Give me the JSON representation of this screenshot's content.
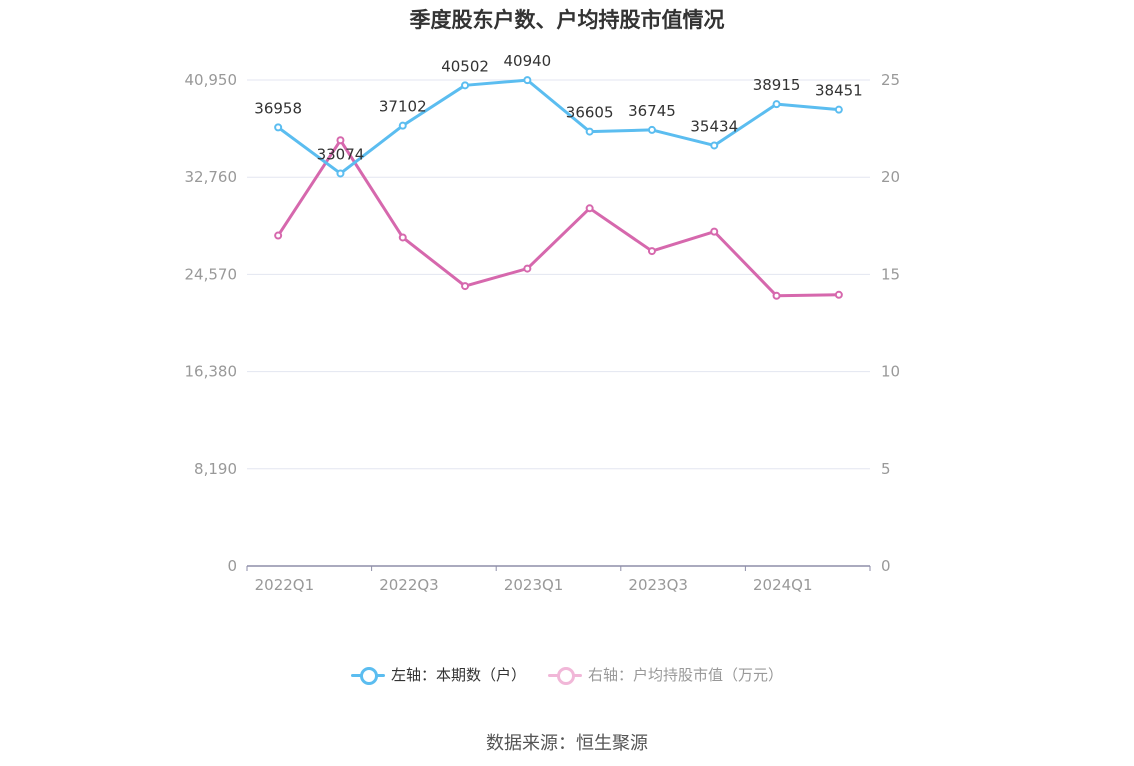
{
  "title": "季度股东户数、户均持股市值情况",
  "source": "数据来源：恒生聚源",
  "legend": {
    "left_label": "左轴：本期数（户）",
    "right_label": "右轴：户均持股市值（万元）"
  },
  "colors": {
    "left": "#5bbdf0",
    "right": "#d668ad",
    "grid": "#e3e6f0",
    "axis": "#8e8ea8"
  },
  "chart_data": {
    "type": "line",
    "categories": [
      "2022Q1",
      "2022Q2",
      "2022Q3",
      "2022Q4",
      "2023Q1",
      "2023Q2",
      "2023Q3",
      "2023Q4",
      "2024Q1",
      "2024Q2"
    ],
    "x_tick_labels": [
      "2022Q1",
      "",
      "2022Q3",
      "",
      "2023Q1",
      "",
      "2023Q3",
      "",
      "2024Q1",
      ""
    ],
    "left_axis": {
      "ticks": [
        "0",
        "8,190",
        "16,380",
        "24,570",
        "32,760",
        "40,950"
      ],
      "ylim": [
        0,
        40950
      ]
    },
    "right_axis": {
      "ticks": [
        "0",
        "5",
        "10",
        "15",
        "20",
        "25"
      ],
      "ylim": [
        0,
        25
      ]
    },
    "series": [
      {
        "name": "左轴：本期数（户）",
        "axis": "left",
        "values": [
          36958,
          33074,
          37102,
          40502,
          40940,
          36605,
          36745,
          35434,
          38915,
          38451
        ],
        "labels": [
          "36958",
          "33074",
          "37102",
          "40502",
          "40940",
          "36605",
          "36745",
          "35434",
          "38915",
          "38451"
        ]
      },
      {
        "name": "右轴：户均持股市值（万元）",
        "axis": "right",
        "values": [
          17.0,
          21.9,
          16.9,
          14.4,
          15.3,
          18.4,
          16.2,
          17.2,
          13.9,
          13.95
        ]
      }
    ]
  }
}
